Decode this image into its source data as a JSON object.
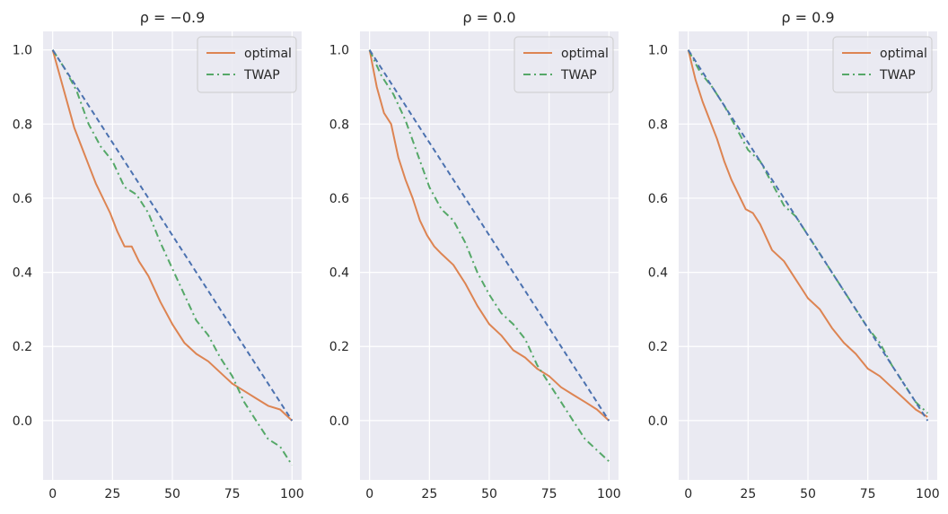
{
  "figure_layout": "1x3 subplots",
  "chart_data": [
    {
      "type": "line",
      "title": "ρ = −0.9",
      "xlabel": "",
      "ylabel": "",
      "xlim": [
        -4,
        104
      ],
      "ylim": [
        -0.16,
        1.05
      ],
      "xticks": [
        0,
        25,
        50,
        75,
        100
      ],
      "xtick_labels": [
        "0",
        "25",
        "50",
        "75",
        "100"
      ],
      "yticks": [
        0.0,
        0.2,
        0.4,
        0.6,
        0.8,
        1.0
      ],
      "ytick_labels": [
        "0.0",
        "0.2",
        "0.4",
        "0.6",
        "0.8",
        "1.0"
      ],
      "grid": true,
      "legend": {
        "position": "top-right",
        "entries": [
          "optimal",
          "TWAP"
        ]
      },
      "series": [
        {
          "name": "optimal",
          "color": "#dd8452",
          "style": "solid",
          "in_legend": true,
          "x": [
            0,
            3,
            6,
            9,
            12,
            15,
            18,
            21,
            24,
            27,
            30,
            33,
            36,
            40,
            45,
            50,
            55,
            60,
            65,
            70,
            75,
            80,
            85,
            90,
            95,
            100
          ],
          "values": [
            1.0,
            0.93,
            0.86,
            0.79,
            0.74,
            0.69,
            0.64,
            0.6,
            0.56,
            0.51,
            0.47,
            0.47,
            0.43,
            0.39,
            0.32,
            0.26,
            0.21,
            0.18,
            0.16,
            0.13,
            0.1,
            0.08,
            0.06,
            0.04,
            0.03,
            0.0
          ]
        },
        {
          "name": "TWAP",
          "color": "#55a868",
          "style": "dashdot",
          "in_legend": true,
          "x": [
            0,
            5,
            10,
            15,
            20,
            25,
            30,
            35,
            40,
            45,
            50,
            55,
            60,
            65,
            70,
            75,
            80,
            85,
            90,
            95,
            100
          ],
          "values": [
            1.0,
            0.95,
            0.89,
            0.8,
            0.74,
            0.7,
            0.63,
            0.61,
            0.56,
            0.48,
            0.41,
            0.34,
            0.27,
            0.23,
            0.17,
            0.12,
            0.05,
            0.0,
            -0.05,
            -0.07,
            -0.12
          ]
        },
        {
          "name": "linear reference",
          "color": "#4c72b0",
          "style": "dashed",
          "in_legend": false,
          "x": [
            0,
            100
          ],
          "values": [
            1.0,
            0.0
          ]
        }
      ]
    },
    {
      "type": "line",
      "title": "ρ = 0.0",
      "xlabel": "",
      "ylabel": "",
      "xlim": [
        -4,
        104
      ],
      "ylim": [
        -0.16,
        1.05
      ],
      "xticks": [
        0,
        25,
        50,
        75,
        100
      ],
      "xtick_labels": [
        "0",
        "25",
        "50",
        "75",
        "100"
      ],
      "yticks": [
        0.0,
        0.2,
        0.4,
        0.6,
        0.8,
        1.0
      ],
      "ytick_labels": [
        "0.0",
        "0.2",
        "0.4",
        "0.6",
        "0.8",
        "1.0"
      ],
      "grid": true,
      "legend": {
        "position": "top-right",
        "entries": [
          "optimal",
          "TWAP"
        ]
      },
      "series": [
        {
          "name": "optimal",
          "color": "#dd8452",
          "style": "solid",
          "in_legend": true,
          "x": [
            0,
            3,
            6,
            9,
            12,
            15,
            18,
            21,
            24,
            27,
            30,
            35,
            40,
            45,
            50,
            55,
            60,
            65,
            70,
            75,
            80,
            85,
            90,
            95,
            100
          ],
          "values": [
            1.0,
            0.9,
            0.83,
            0.8,
            0.71,
            0.65,
            0.6,
            0.54,
            0.5,
            0.47,
            0.45,
            0.42,
            0.37,
            0.31,
            0.26,
            0.23,
            0.19,
            0.17,
            0.14,
            0.12,
            0.09,
            0.07,
            0.05,
            0.03,
            0.0
          ]
        },
        {
          "name": "TWAP",
          "color": "#55a868",
          "style": "dashdot",
          "in_legend": true,
          "x": [
            0,
            5,
            10,
            15,
            20,
            25,
            30,
            35,
            40,
            45,
            50,
            55,
            60,
            65,
            70,
            75,
            80,
            85,
            90,
            95,
            100
          ],
          "values": [
            1.0,
            0.93,
            0.88,
            0.81,
            0.72,
            0.63,
            0.57,
            0.54,
            0.48,
            0.4,
            0.34,
            0.29,
            0.26,
            0.22,
            0.15,
            0.1,
            0.05,
            0.0,
            -0.05,
            -0.08,
            -0.11
          ]
        },
        {
          "name": "linear reference",
          "color": "#4c72b0",
          "style": "dashed",
          "in_legend": false,
          "x": [
            0,
            100
          ],
          "values": [
            1.0,
            0.0
          ]
        }
      ]
    },
    {
      "type": "line",
      "title": "ρ = 0.9",
      "xlabel": "",
      "ylabel": "",
      "xlim": [
        -4,
        104
      ],
      "ylim": [
        -0.16,
        1.05
      ],
      "xticks": [
        0,
        25,
        50,
        75,
        100
      ],
      "xtick_labels": [
        "0",
        "25",
        "50",
        "75",
        "100"
      ],
      "yticks": [
        0.0,
        0.2,
        0.4,
        0.6,
        0.8,
        1.0
      ],
      "ytick_labels": [
        "0.0",
        "0.2",
        "0.4",
        "0.6",
        "0.8",
        "1.0"
      ],
      "grid": true,
      "legend": {
        "position": "top-right",
        "entries": [
          "optimal",
          "TWAP"
        ]
      },
      "series": [
        {
          "name": "optimal",
          "color": "#dd8452",
          "style": "solid",
          "in_legend": true,
          "x": [
            0,
            3,
            6,
            9,
            12,
            15,
            18,
            21,
            24,
            27,
            30,
            35,
            40,
            45,
            50,
            55,
            60,
            65,
            70,
            75,
            80,
            85,
            90,
            95,
            100
          ],
          "values": [
            1.0,
            0.92,
            0.86,
            0.81,
            0.76,
            0.7,
            0.65,
            0.61,
            0.57,
            0.56,
            0.53,
            0.46,
            0.43,
            0.38,
            0.33,
            0.3,
            0.25,
            0.21,
            0.18,
            0.14,
            0.12,
            0.09,
            0.06,
            0.03,
            0.01
          ]
        },
        {
          "name": "TWAP",
          "color": "#55a868",
          "style": "dashdot",
          "in_legend": true,
          "x": [
            0,
            5,
            10,
            15,
            20,
            25,
            30,
            35,
            40,
            45,
            50,
            55,
            60,
            65,
            70,
            75,
            80,
            85,
            90,
            95,
            100
          ],
          "values": [
            1.0,
            0.94,
            0.9,
            0.85,
            0.79,
            0.73,
            0.7,
            0.64,
            0.58,
            0.55,
            0.5,
            0.45,
            0.4,
            0.35,
            0.3,
            0.25,
            0.21,
            0.15,
            0.1,
            0.05,
            0.02
          ]
        },
        {
          "name": "linear reference",
          "color": "#4c72b0",
          "style": "dashed",
          "in_legend": false,
          "x": [
            0,
            100
          ],
          "values": [
            1.0,
            0.0
          ]
        }
      ]
    }
  ]
}
